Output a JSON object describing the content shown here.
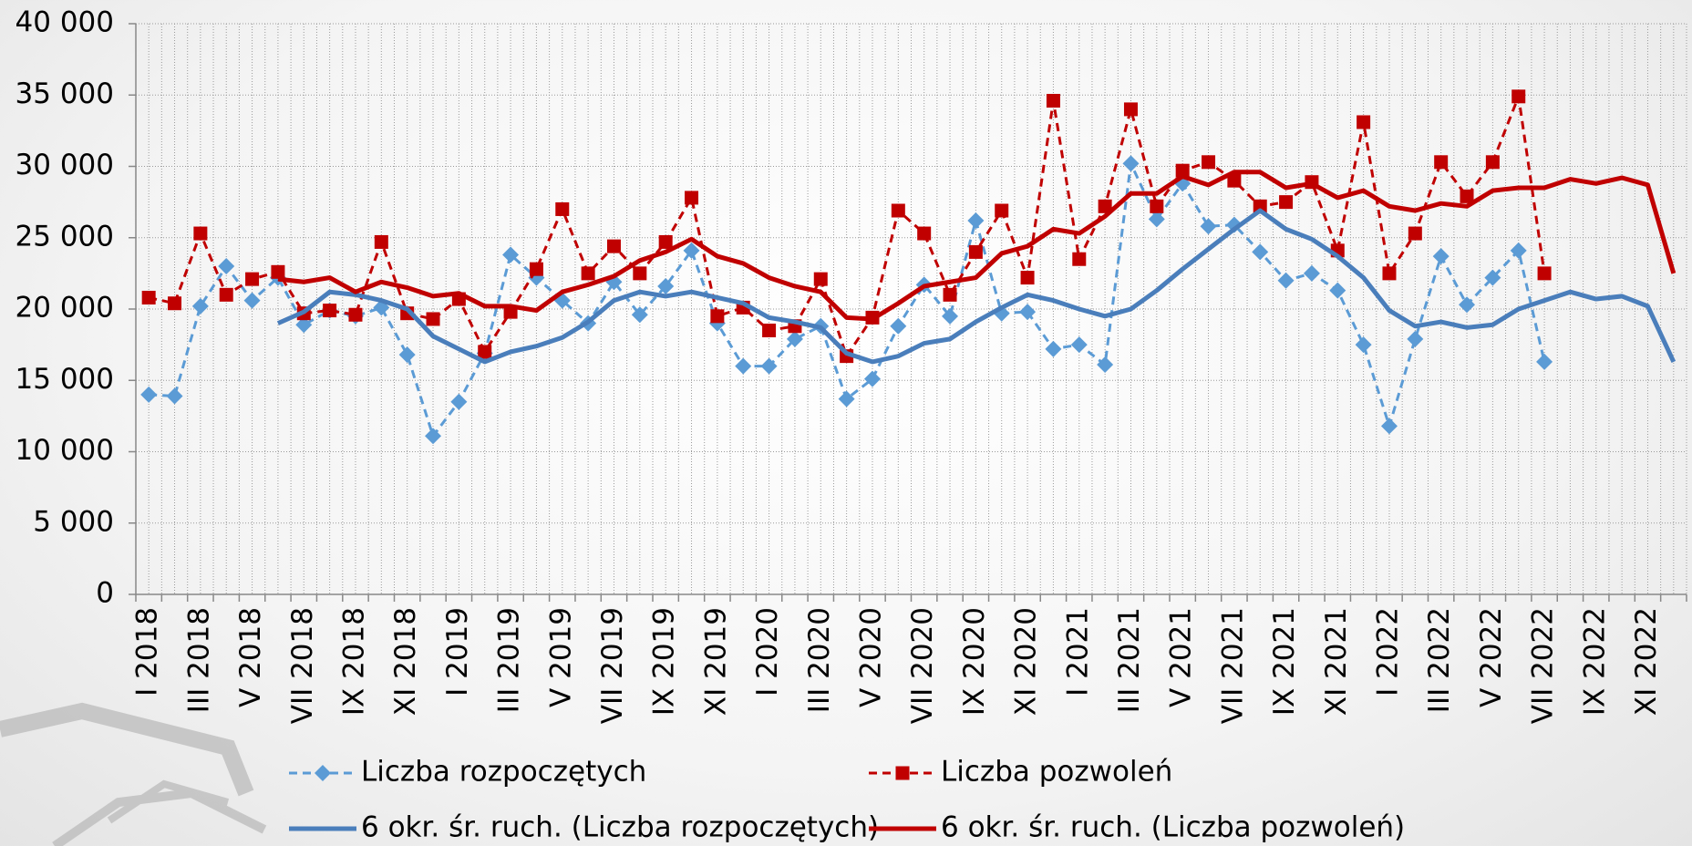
{
  "chart_data": {
    "type": "line",
    "categories": [
      "I 2018",
      null,
      "III 2018",
      null,
      "V 2018",
      null,
      "VII 2018",
      null,
      "IX 2018",
      null,
      "XI 2018",
      null,
      "I 2019",
      null,
      "III 2019",
      null,
      "V 2019",
      null,
      "VII 2019",
      null,
      "IX 2019",
      null,
      "XI 2019",
      null,
      "I 2020",
      null,
      "III 2020",
      null,
      "V 2020",
      null,
      "VII 2020",
      null,
      "IX 2020",
      null,
      "XI 2020",
      null,
      "I 2021",
      null,
      "III 2021",
      null,
      "V 2021",
      null,
      "VII 2021",
      null,
      "IX 2021",
      null,
      "XI 2021",
      null,
      "I 2022",
      null,
      "III 2022",
      null,
      "V 2022",
      null,
      "VII 2022",
      null,
      "IX 2022",
      null,
      "XI 2022",
      null
    ],
    "series": [
      {
        "name": "Liczba rozpoczętych",
        "color": "#5b9bd5",
        "dashed": true,
        "marker": "diamond",
        "values": [
          14000,
          13900,
          20200,
          23000,
          20600,
          22200,
          18900,
          19900,
          19500,
          20100,
          16800,
          11100,
          13500,
          16900,
          23800,
          22200,
          20600,
          19000,
          21900,
          19600,
          21600,
          24100,
          19000,
          16000,
          16000,
          17900,
          18800,
          13700,
          15100,
          18800,
          21700,
          19500,
          26200,
          19700,
          19800,
          17200,
          17500,
          16100,
          30200,
          26300,
          28800,
          25800,
          25900,
          24000,
          22000,
          22500,
          21300,
          17500,
          11800,
          17900,
          23700,
          20300,
          22200,
          24100,
          16300,
          null,
          null,
          null,
          null,
          null
        ]
      },
      {
        "name": "Liczba pozwoleń",
        "color": "#c00000",
        "dashed": true,
        "marker": "square",
        "values": [
          20800,
          20400,
          25300,
          21000,
          22100,
          22600,
          19700,
          19900,
          19600,
          24700,
          19700,
          19300,
          20700,
          17000,
          19800,
          22800,
          27000,
          22500,
          24400,
          22500,
          24700,
          27800,
          19500,
          20100,
          18500,
          18800,
          22100,
          16700,
          19400,
          26900,
          25300,
          21000,
          24000,
          26900,
          22200,
          34600,
          23500,
          27200,
          34000,
          27200,
          29700,
          30300,
          29000,
          27200,
          27500,
          28900,
          24100,
          33100,
          22500,
          25300,
          30300,
          27900,
          30300,
          34900,
          22500,
          null,
          null,
          null,
          null,
          null
        ]
      },
      {
        "name": "6 okr. śr. ruch. (Liczba rozpoczętych)",
        "color": "#4a7ebb",
        "dashed": false,
        "marker": null,
        "values": [
          null,
          null,
          null,
          null,
          null,
          19000,
          19800,
          21200,
          21000,
          20600,
          20000,
          18100,
          17200,
          16300,
          17000,
          17400,
          18000,
          19100,
          20600,
          21200,
          20900,
          21200,
          20800,
          20400,
          19400,
          19100,
          18700,
          16900,
          16300,
          16700,
          17600,
          17900,
          19100,
          20100,
          21000,
          20600,
          20000,
          19500,
          20000,
          21300,
          22800,
          24200,
          25600,
          26900,
          25600,
          24900,
          23700,
          22200,
          19900,
          18800,
          19100,
          18700,
          18900,
          20000,
          20600,
          21200,
          20700,
          20900,
          20200,
          16300
        ]
      },
      {
        "name": "6 okr. śr. ruch. (Liczba pozwoleń)",
        "color": "#c00000",
        "dashed": false,
        "marker": null,
        "values": [
          null,
          null,
          null,
          null,
          null,
          22100,
          21900,
          22200,
          21200,
          21900,
          21500,
          20900,
          21100,
          20200,
          20200,
          19900,
          21200,
          21700,
          22300,
          23400,
          24000,
          24900,
          23700,
          23200,
          22200,
          21600,
          21200,
          19400,
          19300,
          20400,
          21600,
          21900,
          22200,
          23900,
          24400,
          25600,
          25300,
          26500,
          28100,
          28100,
          29300,
          28700,
          29600,
          29600,
          28500,
          28800,
          27800,
          28300,
          27200,
          26900,
          27400,
          27200,
          28300,
          28500,
          28500,
          29100,
          28800,
          29200,
          28700,
          22500
        ]
      }
    ],
    "ylim": [
      0,
      40000
    ],
    "yticks": [
      {
        "value": 0,
        "label": "0"
      },
      {
        "value": 5000,
        "label": "5 000"
      },
      {
        "value": 10000,
        "label": "10 000"
      },
      {
        "value": 15000,
        "label": "15 000"
      },
      {
        "value": 20000,
        "label": "20 000"
      },
      {
        "value": 25000,
        "label": "25 000"
      },
      {
        "value": 30000,
        "label": "30 000"
      },
      {
        "value": 35000,
        "label": "35 000"
      },
      {
        "value": 40000,
        "label": "40 000"
      }
    ],
    "grid": true,
    "legend": "bottom"
  }
}
